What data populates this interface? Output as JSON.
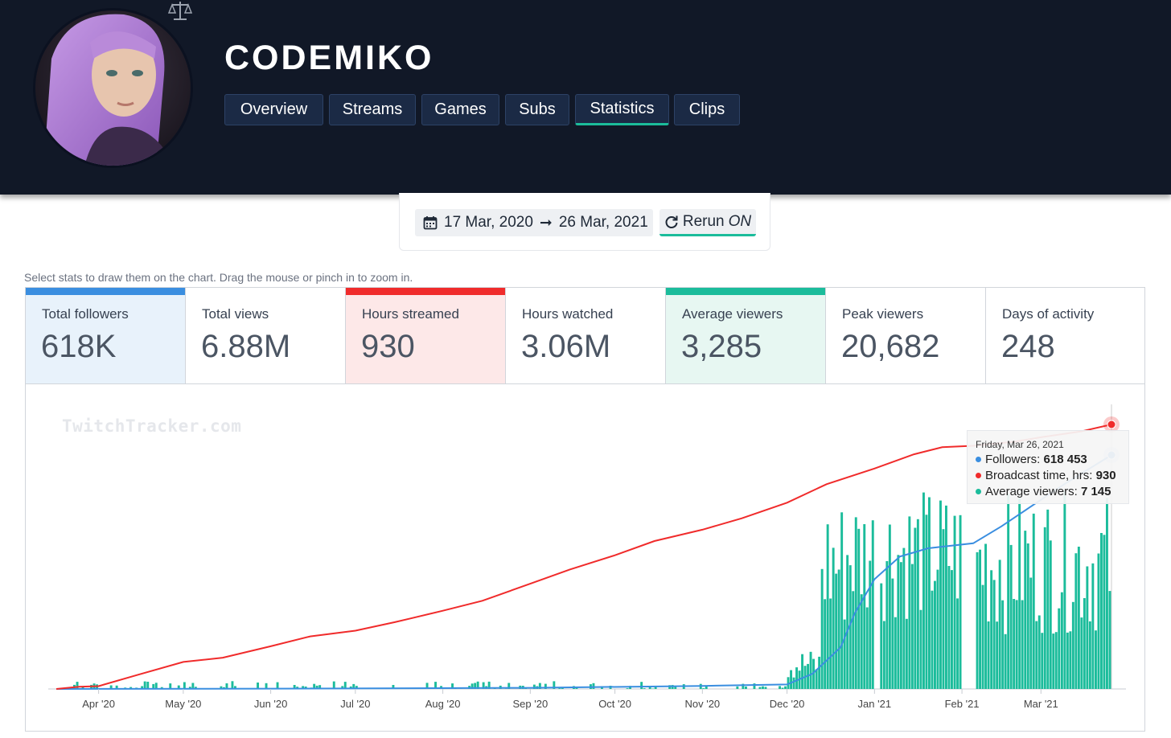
{
  "header": {
    "channel_name": "CODEMIKO",
    "tabs": [
      {
        "label": "Overview",
        "active": false
      },
      {
        "label": "Streams",
        "active": false
      },
      {
        "label": "Games",
        "active": false
      },
      {
        "label": "Subs",
        "active": false
      },
      {
        "label": "Statistics",
        "active": true
      },
      {
        "label": "Clips",
        "active": false
      }
    ]
  },
  "date_filter": {
    "start": "17 Mar, 2020",
    "end": "26 Mar, 2021",
    "rerun_label": "Rerun",
    "rerun_state": "ON"
  },
  "hint": "Select stats to draw them on the chart. Drag the mouse or pinch in to zoom in.",
  "stats": [
    {
      "label": "Total followers",
      "value": "618K",
      "selected": true,
      "color": "#3a8ee0",
      "bg": "#e8f2fb"
    },
    {
      "label": "Total views",
      "value": "6.88M",
      "selected": false
    },
    {
      "label": "Hours streamed",
      "value": "930",
      "selected": true,
      "color": "#f02b2b",
      "bg": "#fde8e8"
    },
    {
      "label": "Hours watched",
      "value": "3.06M",
      "selected": false
    },
    {
      "label": "Average viewers",
      "value": "3,285",
      "selected": true,
      "color": "#1bbc9b",
      "bg": "#e7f7f2"
    },
    {
      "label": "Peak viewers",
      "value": "20,682",
      "selected": false
    },
    {
      "label": "Days of activity",
      "value": "248",
      "selected": false
    }
  ],
  "watermark": "TwitchTracker.com",
  "tooltip": {
    "date": "Friday, Mar 26, 2021",
    "rows": [
      {
        "label": "Followers:",
        "value": "618 453",
        "color": "#3a8ee0"
      },
      {
        "label": "Broadcast time, hrs:",
        "value": "930",
        "color": "#f02b2b"
      },
      {
        "label": "Average viewers:",
        "value": "7 145",
        "color": "#1bbc9b"
      }
    ]
  },
  "chart_data": {
    "type": "line",
    "x_tick_labels": [
      "Apr '20",
      "May '20",
      "Jun '20",
      "Jul '20",
      "Aug '20",
      "Sep '20",
      "Oct '20",
      "Nov '20",
      "Dec '20",
      "Jan '21",
      "Feb '21",
      "Mar '21"
    ],
    "x_range": [
      "2020-03-17",
      "2021-03-26"
    ],
    "series": [
      {
        "name": "Broadcast time, hrs",
        "type": "line",
        "color": "#f02b2b",
        "points": [
          [
            "2020-03-17",
            0
          ],
          [
            "2020-03-25",
            8
          ],
          [
            "2020-04-01",
            10
          ],
          [
            "2020-04-15",
            50
          ],
          [
            "2020-05-01",
            95
          ],
          [
            "2020-05-15",
            110
          ],
          [
            "2020-06-01",
            150
          ],
          [
            "2020-06-15",
            185
          ],
          [
            "2020-07-01",
            205
          ],
          [
            "2020-07-15",
            235
          ],
          [
            "2020-08-01",
            275
          ],
          [
            "2020-08-15",
            310
          ],
          [
            "2020-09-01",
            370
          ],
          [
            "2020-09-15",
            420
          ],
          [
            "2020-10-01",
            470
          ],
          [
            "2020-10-15",
            520
          ],
          [
            "2020-11-01",
            560
          ],
          [
            "2020-11-15",
            600
          ],
          [
            "2020-12-01",
            655
          ],
          [
            "2020-12-15",
            720
          ],
          [
            "2021-01-01",
            775
          ],
          [
            "2021-01-15",
            825
          ],
          [
            "2021-01-25",
            850
          ],
          [
            "2021-02-05",
            855
          ],
          [
            "2021-02-10",
            860
          ],
          [
            "2021-02-20",
            870
          ],
          [
            "2021-03-01",
            885
          ],
          [
            "2021-03-15",
            905
          ],
          [
            "2021-03-26",
            930
          ]
        ]
      },
      {
        "name": "Followers",
        "type": "line",
        "color": "#3a8ee0",
        "points": [
          [
            "2020-03-17",
            0
          ],
          [
            "2020-06-01",
            800
          ],
          [
            "2020-09-01",
            3000
          ],
          [
            "2020-11-01",
            8000
          ],
          [
            "2020-12-01",
            12000
          ],
          [
            "2020-12-10",
            40000
          ],
          [
            "2020-12-20",
            110000
          ],
          [
            "2020-12-25",
            200000
          ],
          [
            "2021-01-01",
            290000
          ],
          [
            "2021-01-10",
            350000
          ],
          [
            "2021-01-20",
            372000
          ],
          [
            "2021-02-05",
            385000
          ],
          [
            "2021-02-15",
            430000
          ],
          [
            "2021-02-25",
            480000
          ],
          [
            "2021-03-10",
            545000
          ],
          [
            "2021-03-26",
            618453
          ]
        ]
      },
      {
        "name": "Average viewers",
        "type": "bar",
        "color": "#1bbc9b",
        "approx_daily_levels": [
          {
            "period": "Mar 2020 - Nov 2020",
            "range": [
              0,
              300
            ]
          },
          {
            "period": "early Dec 2020",
            "range": [
              300,
              1500
            ]
          },
          {
            "period": "mid Dec 2020",
            "range": [
              2000,
              7200
            ]
          },
          {
            "period": "late Dec 2020 - Jan 2021",
            "range": [
              2500,
              7400
            ]
          },
          {
            "period": "Feb 2021 - Mar 2021",
            "range": [
              2000,
              7300
            ]
          }
        ]
      }
    ],
    "tooltip_point": {
      "date": "2021-03-26",
      "followers": 618453,
      "broadcast_hours": 930,
      "average_viewers": 7145
    },
    "grid": false,
    "legend": "none"
  }
}
